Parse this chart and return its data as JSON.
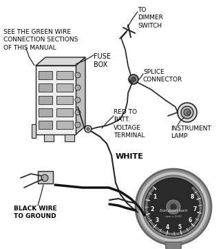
{
  "bg_color": "#ffffff",
  "line_color": "#222222",
  "text_color": "#000000",
  "labels": {
    "green_wire": "SEE THE GREEN WIRE\nCONNECTION SECTIONS\nOF THIS MANUAL",
    "fuse_box": "FUSE\nBOX",
    "red_to_batt": "RED TO\nBATT.\nVOLTAGE\nTERMINAL",
    "to_dimmer": "TO\nDIMMER\nSWITCH",
    "splice_connector": "SPLICE\nCONNECTOR",
    "instrument_lamp": "INSTRUMENT\nLAMP",
    "white": "WHITE",
    "black_wire": "BLACK WIRE\nTO GROUND"
  },
  "figsize": [
    3.24,
    3.61
  ],
  "dpi": 100
}
